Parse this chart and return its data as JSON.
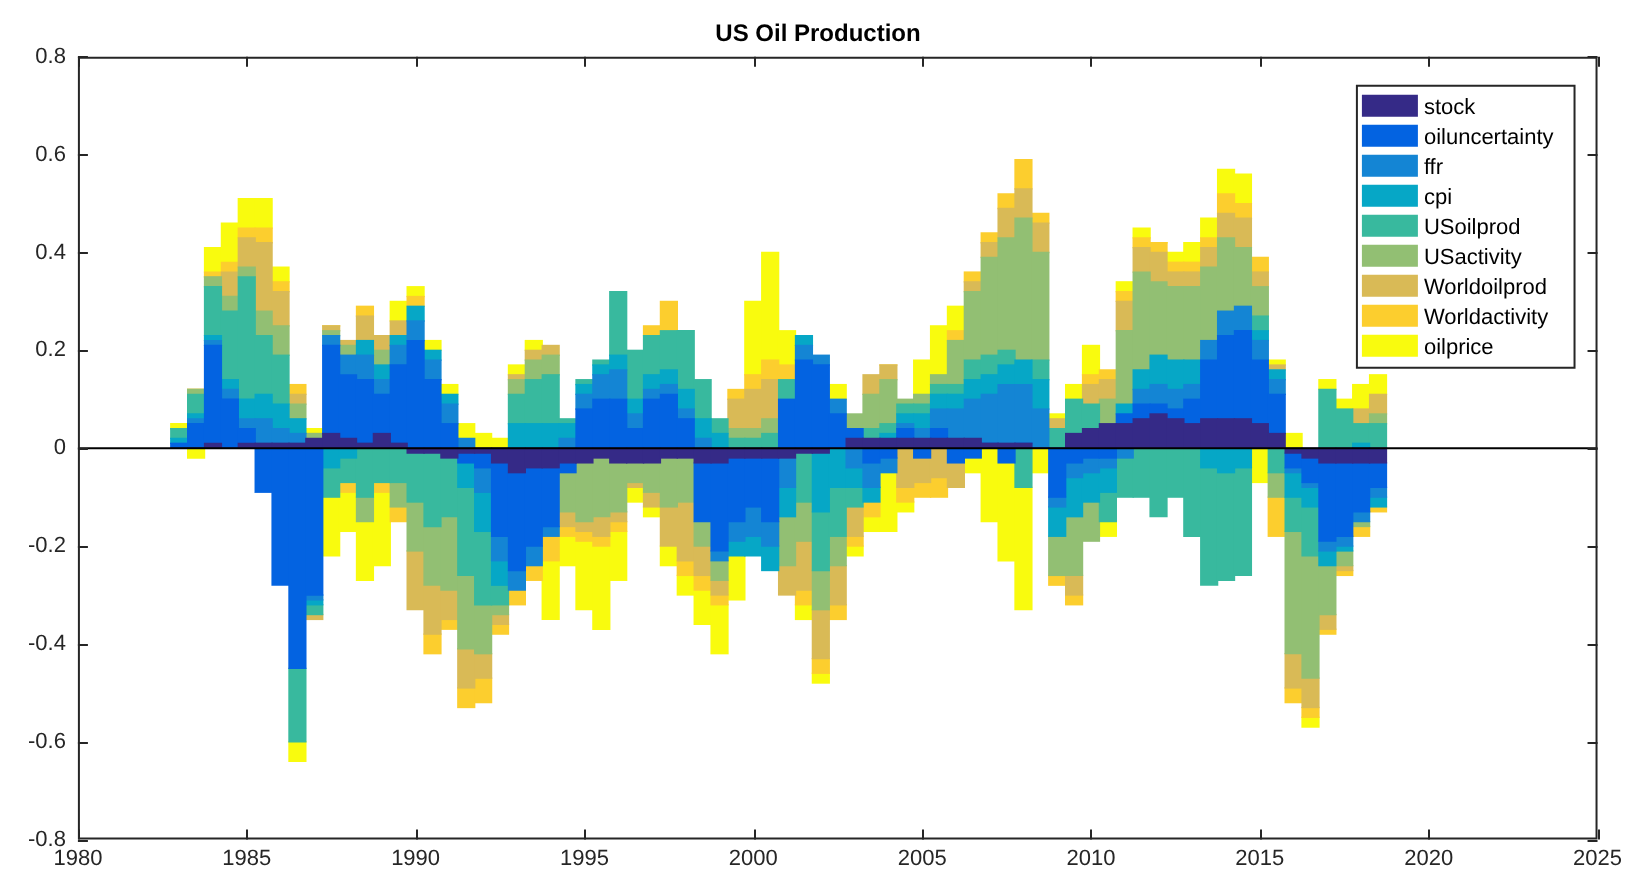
{
  "chart_data": {
    "type": "bar",
    "title": "US Oil Production",
    "stacked": true,
    "legend": "top right",
    "xlim": [
      1980,
      2025
    ],
    "xticks": [
      1980,
      1985,
      1990,
      1995,
      2000,
      2005,
      2010,
      2015,
      2020,
      2025
    ],
    "ylim": [
      -0.8,
      0.8
    ],
    "yticks": [
      -0.8,
      -0.6,
      -0.4,
      -0.2,
      0,
      0.2,
      0.4,
      0.6,
      0.8
    ],
    "ref_lines": [
      {
        "axis": "y",
        "value": 0,
        "color": "#000000"
      }
    ],
    "x": [
      1983,
      1983.5,
      1984,
      1984.5,
      1985,
      1985.5,
      1986,
      1986.5,
      1987,
      1987.5,
      1988,
      1988.5,
      1989,
      1989.5,
      1990,
      1990.5,
      1991,
      1991.5,
      1992,
      1992.5,
      1993,
      1993.5,
      1994,
      1994.5,
      1995,
      1995.5,
      1996,
      1996.5,
      1997,
      1997.5,
      1998,
      1998.5,
      1999,
      1999.5,
      2000,
      2000.5,
      2001,
      2001.5,
      2002,
      2002.5,
      2003,
      2003.5,
      2004,
      2004.5,
      2005,
      2005.5,
      2006,
      2006.5,
      2007,
      2007.5,
      2008,
      2008.5,
      2009,
      2009.5,
      2010,
      2010.5,
      2011,
      2011.5,
      2012,
      2012.5,
      2013,
      2013.5,
      2014,
      2014.5,
      2015,
      2015.5,
      2016,
      2016.5,
      2017,
      2017.5,
      2018,
      2018.5
    ],
    "series": [
      {
        "name": "stock",
        "color": "#352a87",
        "values": [
          0,
          0,
          0.01,
          0,
          0.01,
          0.01,
          0.01,
          0.01,
          0.02,
          0.03,
          0.02,
          0.01,
          0.03,
          0.01,
          -0.01,
          -0.01,
          -0.02,
          -0.01,
          -0.01,
          -0.03,
          -0.05,
          -0.04,
          -0.04,
          -0.03,
          -0.03,
          -0.02,
          -0.03,
          -0.03,
          -0.03,
          -0.02,
          -0.02,
          -0.03,
          -0.03,
          -0.02,
          -0.02,
          -0.02,
          -0.02,
          -0.01,
          -0.01,
          0,
          0.02,
          0.02,
          0.02,
          0.02,
          0.02,
          0.02,
          0.02,
          0.02,
          0.01,
          0.01,
          0.01,
          0,
          0,
          0.03,
          0.04,
          0.05,
          0.05,
          0.06,
          0.07,
          0.06,
          0.05,
          0.06,
          0.06,
          0.06,
          0.05,
          0.03,
          -0.01,
          -0.02,
          -0.03,
          -0.03,
          -0.03,
          -0.03
        ]
      },
      {
        "name": "oiluncertainty",
        "color": "#0363e1",
        "values": [
          0.01,
          0.05,
          0.2,
          0.1,
          0.03,
          -0.09,
          -0.28,
          -0.45,
          -0.3,
          0.18,
          0.13,
          0.13,
          0.08,
          0.16,
          0.22,
          0.14,
          0.05,
          -0.02,
          -0.03,
          -0.15,
          -0.2,
          -0.16,
          -0.12,
          -0.02,
          0.08,
          0.1,
          0.1,
          0.04,
          0.1,
          0.11,
          0.06,
          -0.12,
          -0.18,
          -0.13,
          -0.1,
          -0.13,
          0.1,
          0.18,
          0.17,
          0.07,
          0.02,
          -0.03,
          -0.02,
          0.02,
          -0.02,
          0.02,
          -0.03,
          -0.02,
          0,
          -0.03,
          0,
          0,
          -0.1,
          -0.03,
          -0.02,
          -0.02,
          0.02,
          0.03,
          0.02,
          0.02,
          0.05,
          0.12,
          0.17,
          0.18,
          0.13,
          0.08,
          -0.03,
          -0.05,
          -0.16,
          -0.15,
          -0.1,
          -0.05
        ]
      },
      {
        "name": "ffr",
        "color": "#1485d4",
        "values": [
          0,
          0.01,
          0.01,
          0.02,
          0.02,
          0.05,
          0.03,
          0.02,
          -0.01,
          0.02,
          0.04,
          0.05,
          0.03,
          0.04,
          0.04,
          0.04,
          0.04,
          0.02,
          -0.05,
          -0.05,
          -0.04,
          -0.04,
          -0.02,
          0.02,
          0.03,
          0.05,
          0.06,
          0.03,
          0.02,
          0.02,
          0.02,
          0.02,
          -0.02,
          -0.04,
          -0.06,
          -0.05,
          -0.06,
          0.03,
          0.02,
          0.03,
          -0.04,
          -0.05,
          -0.03,
          0.01,
          0.02,
          0.04,
          0.06,
          0.08,
          0.1,
          0.12,
          0.12,
          0.08,
          -0.02,
          -0.03,
          -0.03,
          -0.02,
          -0.02,
          0.03,
          0.04,
          0.04,
          0.03,
          0.04,
          0.05,
          0.05,
          0.04,
          0.03,
          -0.01,
          -0.01,
          -0.02,
          -0.02,
          -0.02,
          -0.02
        ]
      },
      {
        "name": "cpi",
        "color": "#06a7c6",
        "values": [
          0.01,
          0.01,
          0.01,
          0.02,
          0.04,
          0.05,
          0.05,
          0.03,
          -0.01,
          -0.04,
          -0.02,
          0.03,
          0.03,
          0.02,
          0.03,
          0.02,
          0.02,
          -0.05,
          -0.08,
          -0.05,
          0.05,
          0.05,
          0.05,
          0.03,
          0.02,
          0.02,
          0.03,
          0.03,
          0.03,
          0.03,
          0.04,
          0.04,
          0.03,
          -0.03,
          -0.04,
          -0.05,
          -0.06,
          0.02,
          -0.12,
          -0.08,
          -0.04,
          -0.03,
          0.01,
          0.02,
          0.03,
          0.03,
          0.03,
          0.04,
          0.04,
          0.04,
          0.05,
          0.06,
          -0.06,
          -0.08,
          -0.06,
          -0.05,
          0.02,
          0.04,
          0.06,
          0.06,
          0.05,
          -0.04,
          -0.05,
          -0.04,
          0.02,
          0.02,
          -0.05,
          -0.04,
          -0.03,
          -0.01,
          0.01,
          -0.02
        ]
      },
      {
        "name": "USoilprod",
        "color": "#38b99e",
        "values": [
          0.02,
          0.04,
          0.1,
          0.14,
          0.25,
          0.12,
          0.1,
          -0.15,
          -0.02,
          -0.06,
          -0.05,
          -0.1,
          -0.07,
          -0.07,
          -0.1,
          -0.15,
          -0.12,
          -0.18,
          -0.15,
          -0.04,
          0.06,
          0.09,
          0.1,
          0.01,
          0.01,
          0.01,
          0.13,
          0.1,
          0.08,
          0.08,
          0.12,
          0.08,
          0.03,
          0.02,
          0.02,
          0.03,
          0.04,
          -0.1,
          -0.12,
          -0.1,
          -0.04,
          0.02,
          0.02,
          0.02,
          0.02,
          0.02,
          0.02,
          0.04,
          0.04,
          0.03,
          -0.08,
          0.04,
          0.04,
          0.07,
          0.05,
          -0.06,
          -0.08,
          -0.1,
          -0.14,
          -0.1,
          -0.18,
          -0.24,
          -0.22,
          -0.22,
          0.03,
          -0.05,
          -0.07,
          -0.1,
          0.12,
          0.08,
          0.04,
          0.05
        ]
      },
      {
        "name": "USactivity",
        "color": "#92bf73",
        "values": [
          0,
          0.01,
          0.02,
          0.03,
          0.02,
          0.05,
          0.06,
          0.03,
          0.01,
          0.01,
          0.02,
          -0.05,
          0.03,
          -0.05,
          -0.1,
          -0.12,
          -0.15,
          -0.15,
          -0.1,
          -0.02,
          0.03,
          0.04,
          0.04,
          -0.08,
          -0.12,
          -0.12,
          -0.1,
          -0.04,
          -0.06,
          -0.1,
          -0.09,
          -0.05,
          -0.04,
          0.02,
          0.02,
          0.03,
          -0.1,
          -0.08,
          -0.08,
          -0.06,
          0.03,
          0.07,
          0.09,
          0.01,
          0.02,
          0.02,
          0.09,
          0.14,
          0.2,
          0.23,
          0.29,
          0.22,
          -0.08,
          -0.12,
          -0.08,
          0.05,
          0.15,
          0.2,
          0.15,
          0.15,
          0.15,
          0.15,
          0.15,
          0.12,
          0.06,
          -0.05,
          -0.25,
          -0.25,
          -0.1,
          -0.03,
          -0.01,
          0.02
        ]
      },
      {
        "name": "Worldoilprod",
        "color": "#d9ba56",
        "values": [
          0,
          0,
          0,
          0.05,
          0.06,
          0.14,
          0.07,
          0.02,
          -0.01,
          0.01,
          0.01,
          0.05,
          0.03,
          0.03,
          -0.12,
          -0.1,
          -0.06,
          -0.08,
          -0.05,
          -0.02,
          0.01,
          0.02,
          0.02,
          -0.03,
          -0.02,
          -0.04,
          -0.02,
          -0.01,
          -0.03,
          -0.08,
          -0.12,
          -0.06,
          -0.03,
          0.06,
          0.08,
          0.08,
          -0.06,
          -0.1,
          -0.1,
          -0.08,
          -0.06,
          0.04,
          0.03,
          -0.08,
          -0.05,
          -0.06,
          -0.05,
          0.02,
          0.03,
          0.06,
          0.06,
          0.06,
          0.02,
          -0.04,
          0.04,
          0.04,
          0.06,
          0.05,
          0.06,
          0.03,
          0.03,
          0.04,
          0.05,
          0.06,
          0.03,
          0.01,
          -0.07,
          -0.06,
          -0.03,
          -0.01,
          0.03,
          0.04
        ]
      },
      {
        "name": "Worldactivity",
        "color": "#fcce2e",
        "values": [
          0,
          0,
          0.01,
          0.02,
          0.02,
          0.03,
          0.02,
          0.02,
          0,
          0,
          -0.02,
          0.02,
          -0.02,
          -0.03,
          0.02,
          -0.04,
          -0.02,
          -0.04,
          -0.05,
          -0.02,
          -0.03,
          -0.03,
          -0.05,
          -0.02,
          -0.02,
          -0.02,
          -0.02,
          0,
          0.02,
          0.06,
          -0.03,
          -0.03,
          -0.02,
          0.02,
          0.03,
          0.04,
          0.03,
          -0.03,
          -0.03,
          -0.03,
          -0.02,
          -0.03,
          0,
          -0.03,
          -0.03,
          -0.04,
          0.02,
          0.02,
          0.02,
          0.03,
          0.06,
          0.02,
          -0.02,
          -0.02,
          0.02,
          0.02,
          0.02,
          0.02,
          0.02,
          0.02,
          0.02,
          0.02,
          0.04,
          0.03,
          0.03,
          -0.08,
          -0.03,
          -0.02,
          -0.01,
          -0.01,
          -0.02,
          -0.01
        ]
      },
      {
        "name": "oilprice",
        "color": "#f9fb0e",
        "values": [
          0.01,
          -0.02,
          0.05,
          0.08,
          0.06,
          0.06,
          0.03,
          -0.04,
          0.01,
          -0.12,
          -0.08,
          -0.12,
          -0.15,
          0.04,
          0.02,
          0.02,
          0.02,
          0.03,
          0.03,
          0.02,
          0.02,
          0.02,
          -0.12,
          -0.06,
          -0.14,
          -0.17,
          -0.1,
          -0.03,
          -0.02,
          -0.04,
          -0.04,
          -0.07,
          -0.1,
          -0.09,
          0.15,
          0.22,
          0.07,
          -0.03,
          -0.02,
          0.03,
          -0.02,
          -0.03,
          -0.12,
          -0.02,
          0.07,
          0.1,
          0.05,
          -0.03,
          -0.15,
          -0.2,
          -0.25,
          -0.05,
          0.01,
          0.03,
          0.06,
          -0.03,
          0.02,
          0.02,
          0,
          0.02,
          0.04,
          0.04,
          0.05,
          0.06,
          -0.07,
          0.01,
          0.03,
          -0.02,
          0.02,
          0.02,
          0.05,
          0.04
        ]
      }
    ]
  }
}
